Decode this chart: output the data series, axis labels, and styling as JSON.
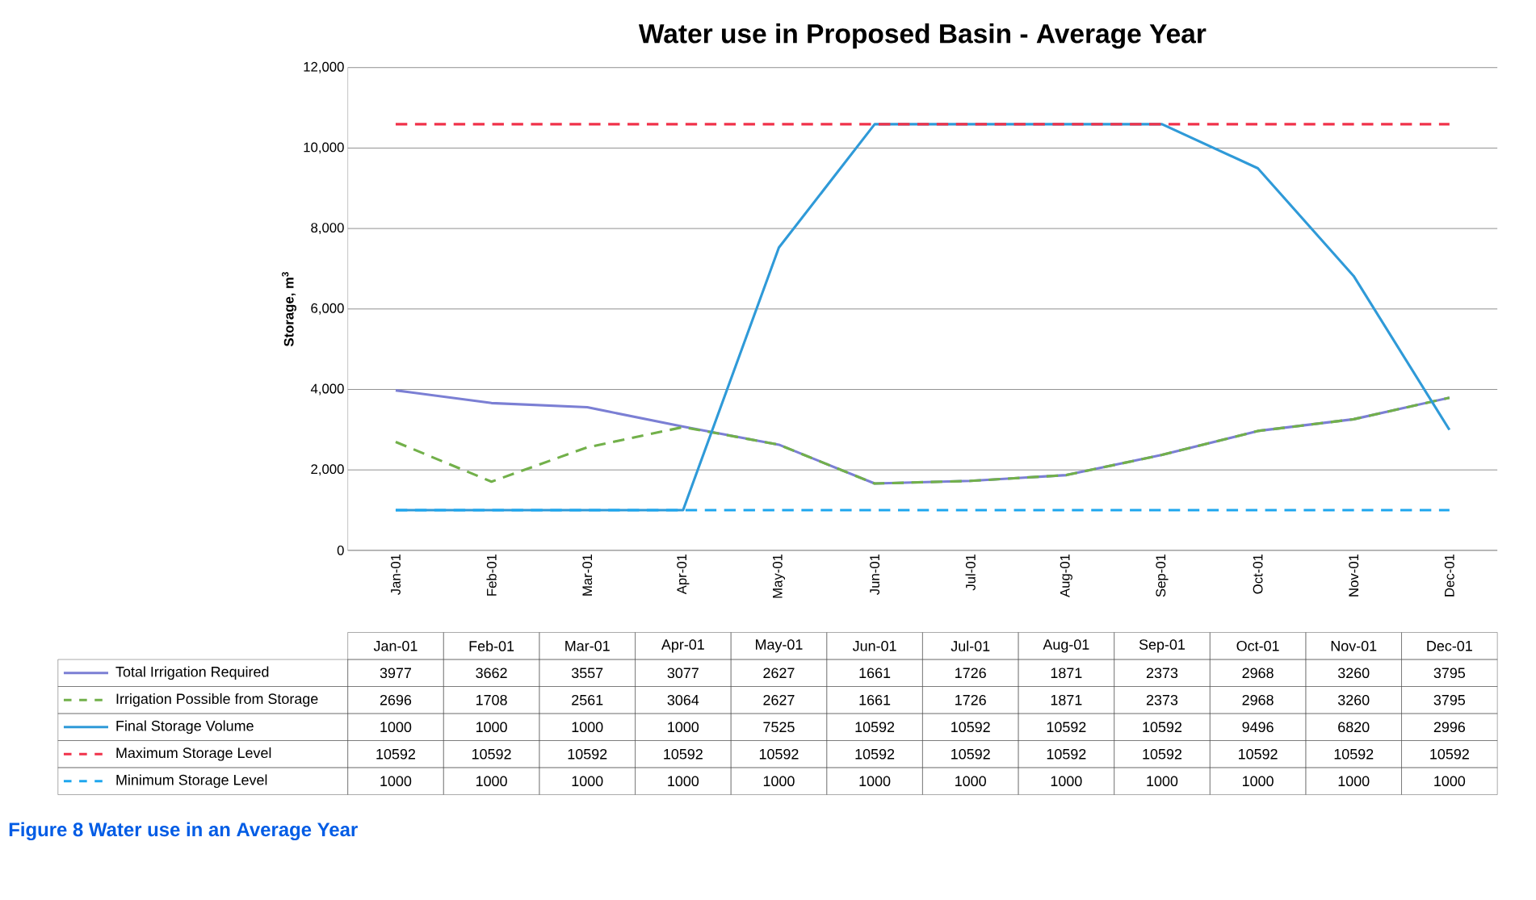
{
  "chart_data": {
    "type": "line",
    "title": "Water use in Proposed Basin - Average Year",
    "ylabel": "Storage, m$^{3}$",
    "categories": [
      "Jan-01",
      "Feb-01",
      "Mar-01",
      "Apr-01",
      "May-01",
      "Jun-01",
      "Jul-01",
      "Aug-01",
      "Sep-01",
      "Oct-01",
      "Nov-01",
      "Dec-01"
    ],
    "series": [
      {
        "name": "Total Irrigation Required",
        "color": "#7b7fd4",
        "line_style": "solid",
        "values": [
          3977,
          3662,
          3557,
          3077,
          2627,
          1661,
          1726,
          1871,
          2373,
          2968,
          3260,
          3795
        ]
      },
      {
        "name": "Irrigation Possible from Storage",
        "color": "#72b04a",
        "line_style": "dashed",
        "values": [
          2696,
          1708,
          2561,
          3064,
          2627,
          1661,
          1726,
          1871,
          2373,
          2968,
          3260,
          3795
        ]
      },
      {
        "name": "Final Storage Volume",
        "color": "#2f9ad8",
        "line_style": "solid",
        "values": [
          1000,
          1000,
          1000,
          1000,
          7525,
          10592,
          10592,
          10592,
          10592,
          9496,
          6820,
          2996
        ]
      },
      {
        "name": "Maximum Storage Level",
        "color": "#f0324a",
        "line_style": "dashed",
        "values": [
          10592,
          10592,
          10592,
          10592,
          10592,
          10592,
          10592,
          10592,
          10592,
          10592,
          10592,
          10592
        ]
      },
      {
        "name": "Minimum Storage Level",
        "color": "#1ea6ee",
        "line_style": "dashed",
        "values": [
          1000,
          1000,
          1000,
          1000,
          1000,
          1000,
          1000,
          1000,
          1000,
          1000,
          1000,
          1000
        ]
      }
    ],
    "ylim": [
      0,
      12000
    ],
    "yticks": [
      {
        "value": 0,
        "label": "0"
      },
      {
        "value": 2000,
        "label": "2,000"
      },
      {
        "value": 4000,
        "label": "4,000"
      },
      {
        "value": 6000,
        "label": "6,000"
      },
      {
        "value": 8000,
        "label": "8,000"
      },
      {
        "value": 10000,
        "label": "10,000"
      },
      {
        "value": 12000,
        "label": "12,000"
      }
    ],
    "grid": "y",
    "legend": "bottom",
    "data_labels": true,
    "annotations": [
      "Figure 8 Water use in an Average Year"
    ]
  }
}
